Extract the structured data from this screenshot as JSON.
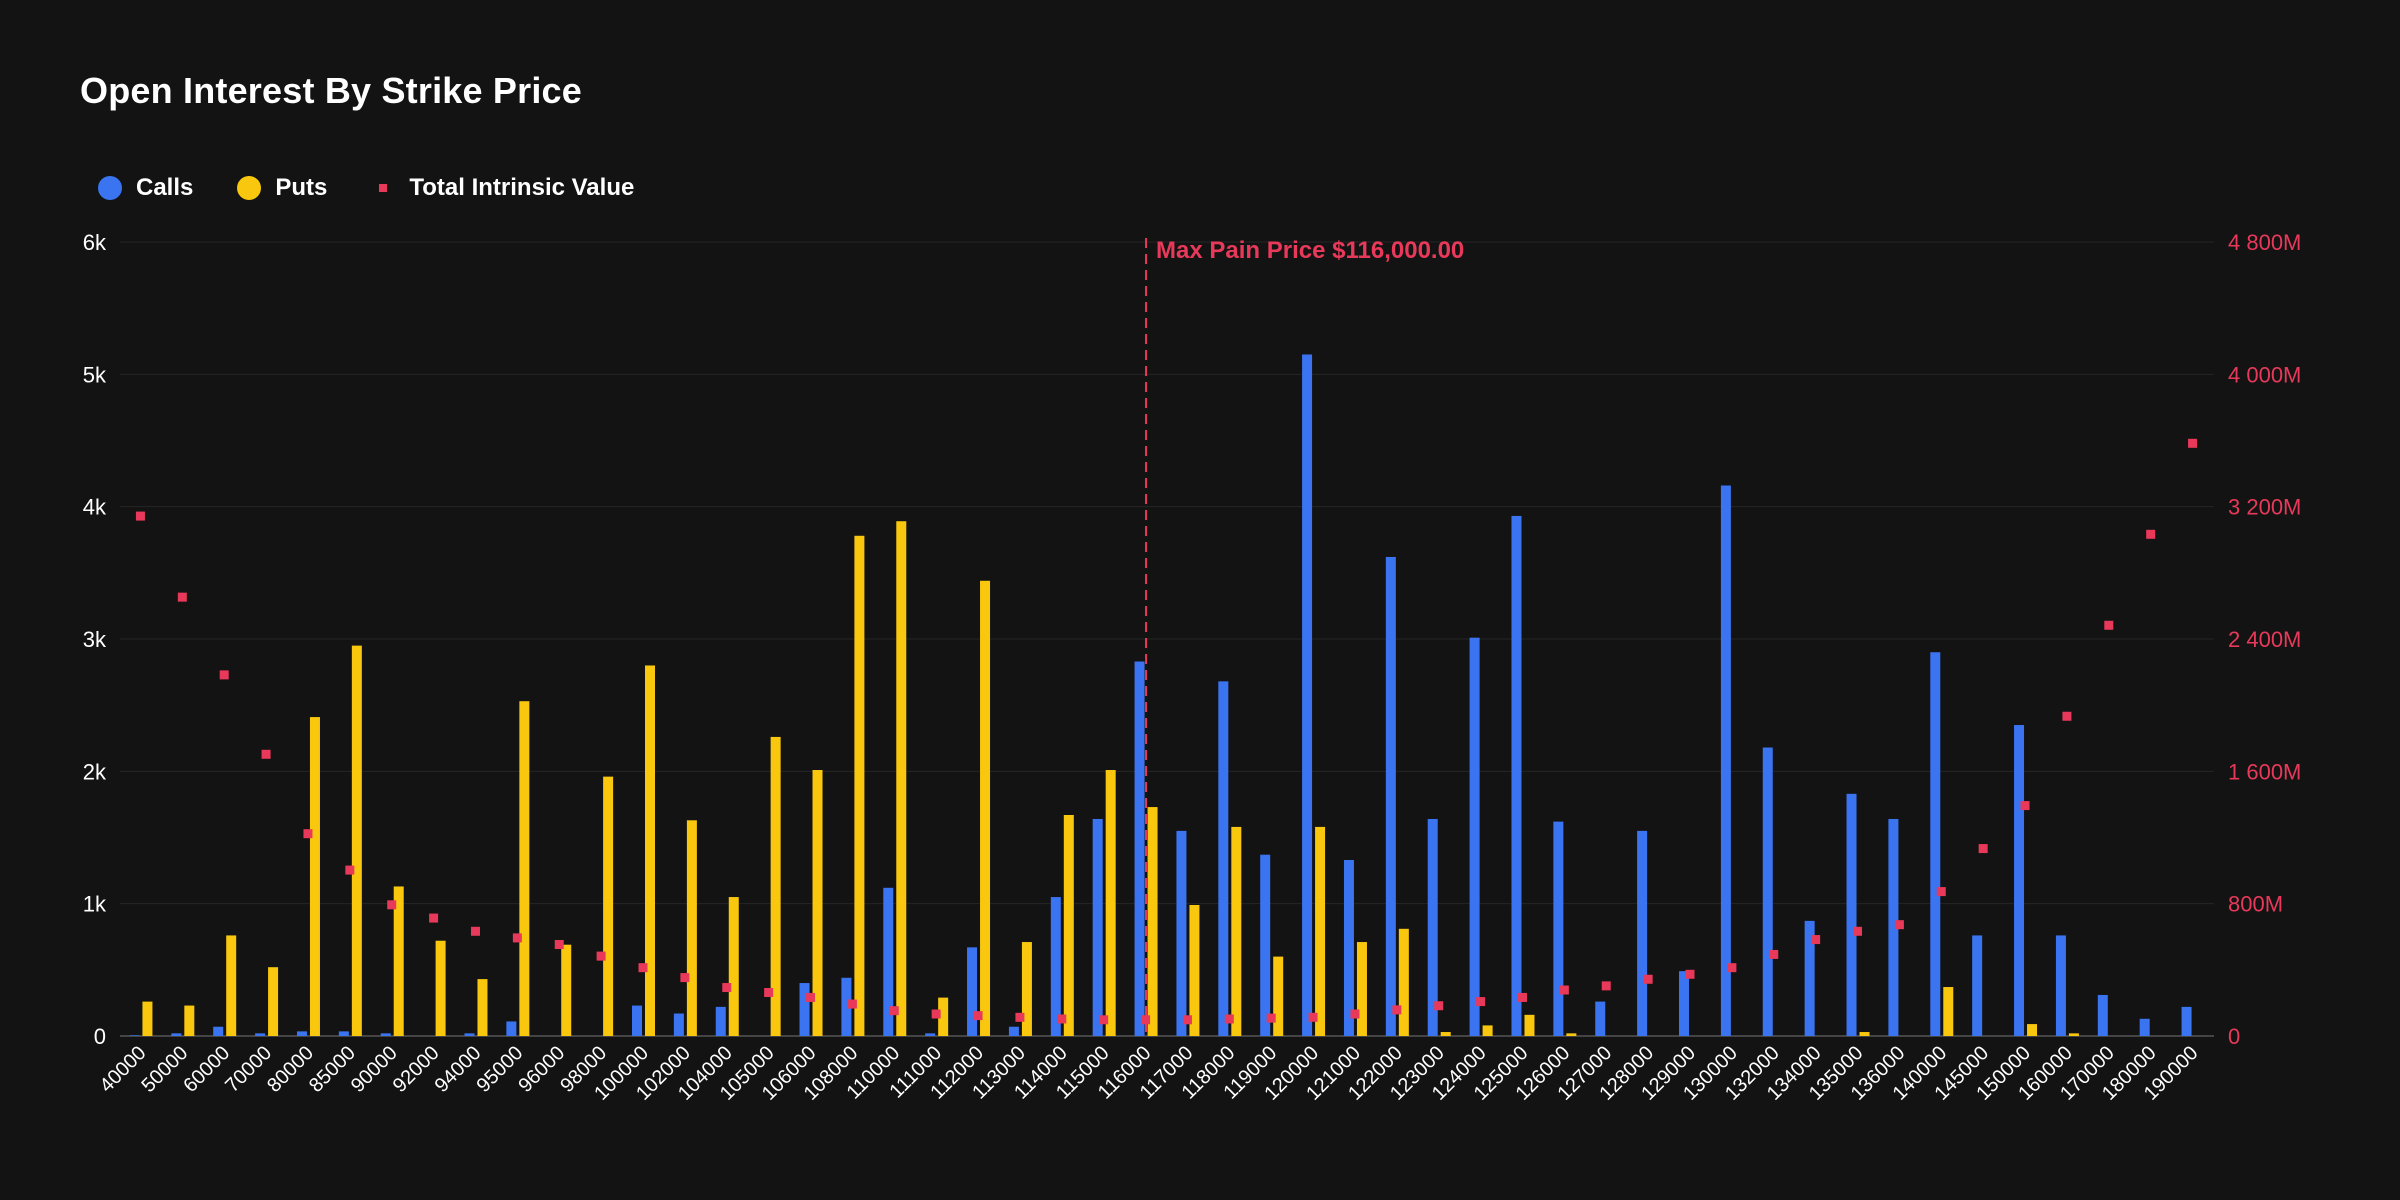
{
  "title": "Open Interest By Strike Price",
  "legend": [
    {
      "label": "Calls",
      "color": "#3b74f0",
      "shape": "circle"
    },
    {
      "label": "Puts",
      "color": "#f9c80e",
      "shape": "circle"
    },
    {
      "label": "Total Intrinsic Value",
      "color": "#e8395a",
      "shape": "square"
    }
  ],
  "colors": {
    "calls": "#3b74f0",
    "puts": "#f9c80e",
    "intrinsic": "#e8395a",
    "grid": "#262626",
    "max_pain": "#e8395a"
  },
  "chart_data": {
    "type": "bar",
    "title": "Open Interest By Strike Price",
    "categories": [
      "40000",
      "50000",
      "60000",
      "70000",
      "80000",
      "85000",
      "90000",
      "92000",
      "94000",
      "95000",
      "96000",
      "98000",
      "100000",
      "102000",
      "104000",
      "105000",
      "106000",
      "108000",
      "110000",
      "111000",
      "112000",
      "113000",
      "114000",
      "115000",
      "116000",
      "117000",
      "118000",
      "119000",
      "120000",
      "121000",
      "122000",
      "123000",
      "124000",
      "125000",
      "126000",
      "127000",
      "128000",
      "129000",
      "130000",
      "132000",
      "134000",
      "135000",
      "136000",
      "140000",
      "145000",
      "150000",
      "160000",
      "170000",
      "180000",
      "190000"
    ],
    "series": [
      {
        "name": "Calls",
        "type": "bar",
        "axis": "left",
        "values": [
          5,
          20,
          70,
          20,
          35,
          35,
          20,
          0,
          20,
          110,
          0,
          0,
          230,
          170,
          220,
          0,
          400,
          440,
          1120,
          20,
          670,
          70,
          1050,
          1640,
          2830,
          1550,
          2680,
          1370,
          5150,
          1330,
          3620,
          1640,
          3010,
          3930,
          1620,
          260,
          1550,
          490,
          4160,
          2180,
          870,
          1830,
          1640,
          2900,
          760,
          2350,
          760,
          310,
          130,
          220
        ]
      },
      {
        "name": "Puts",
        "type": "bar",
        "axis": "left",
        "values": [
          260,
          230,
          760,
          520,
          2410,
          2950,
          1130,
          720,
          430,
          2530,
          690,
          1960,
          2800,
          1630,
          1050,
          2260,
          2010,
          3780,
          3890,
          290,
          3440,
          710,
          1670,
          2010,
          1730,
          990,
          1580,
          600,
          1580,
          710,
          810,
          30,
          80,
          160,
          20,
          0,
          0,
          0,
          0,
          0,
          0,
          30,
          0,
          370,
          0,
          90,
          20,
          0,
          0,
          0
        ]
      },
      {
        "name": "Total Intrinsic Value",
        "type": "scatter",
        "axis": "right",
        "values": [
          3140,
          2650,
          2180,
          1700,
          1220,
          1000,
          790,
          710,
          630,
          590,
          550,
          480,
          410,
          350,
          290,
          260,
          230,
          190,
          150,
          130,
          120,
          110,
          100,
          95,
          95,
          95,
          100,
          105,
          110,
          130,
          155,
          180,
          205,
          230,
          275,
          300,
          340,
          370,
          410,
          490,
          580,
          630,
          670,
          870,
          1130,
          1390,
          1930,
          2480,
          3030,
          3580
        ]
      }
    ],
    "ylim_left": [
      0,
      6000
    ],
    "yticks_left": [
      "0",
      "1k",
      "2k",
      "3k",
      "4k",
      "5k",
      "6k"
    ],
    "ylim_right": [
      0,
      4800
    ],
    "yticks_right": [
      "0",
      "800M",
      "1 600M",
      "2 400M",
      "3 200M",
      "4 000M",
      "4 800M"
    ],
    "right_unit": "M",
    "grid": true,
    "legend_position": "top-left",
    "annotation": {
      "label": "Max Pain Price $116,000.00",
      "x": "116000"
    }
  }
}
